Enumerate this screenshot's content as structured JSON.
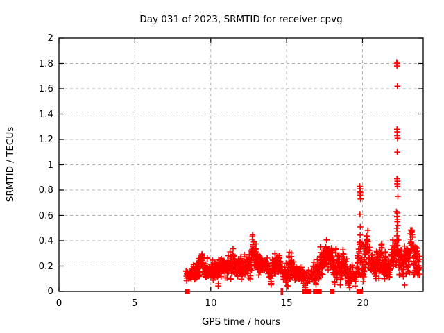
{
  "chart_data": {
    "type": "scatter",
    "title": "Day 031 of 2023, SRMTID for receiver cpvg",
    "xlabel": "GPS time / hours",
    "ylabel": "SRMTID / TECUs",
    "xlim": [
      0,
      24
    ],
    "ylim": [
      0,
      2
    ],
    "xticks": [
      0,
      5,
      10,
      15,
      20
    ],
    "xtick_labels": [
      "0",
      "5",
      "10",
      "15",
      "20"
    ],
    "yticks": [
      0,
      0.2,
      0.4,
      0.6,
      0.8,
      1,
      1.2,
      1.4,
      1.6,
      1.8,
      2
    ],
    "ytick_labels": [
      "0",
      "0.2",
      "0.4",
      "0.6",
      "0.8",
      "1",
      "1.2",
      "1.4",
      "1.6",
      "1.8",
      "2"
    ],
    "grid": true,
    "grid_color": "#b0b0b0",
    "border_color": "#000000",
    "marker": "+",
    "marker_color": "#ff0000",
    "legend": null,
    "band": {
      "comment": "dense noisy scatter band; envelope rows are [hour, mean_TECU, half_spread_TECU], linearly interpolated; sampled every cadence hours with seeded noise",
      "start": 8.38,
      "end": 23.78,
      "cadence": 0.01,
      "seed": 1031,
      "clamp": [
        0.03,
        0.485
      ],
      "sparse_ranges": [
        [
          14.55,
          14.85,
          0.6
        ],
        [
          16.13,
          16.62,
          0.35
        ],
        [
          19.3,
          19.62,
          0.55
        ]
      ],
      "envelope": [
        [
          8.38,
          0.13,
          0.035
        ],
        [
          8.7,
          0.14,
          0.045
        ],
        [
          9.0,
          0.17,
          0.06
        ],
        [
          9.35,
          0.22,
          0.09
        ],
        [
          9.6,
          0.18,
          0.06
        ],
        [
          9.9,
          0.16,
          0.05
        ],
        [
          10.15,
          0.18,
          0.06
        ],
        [
          10.4,
          0.21,
          0.08
        ],
        [
          10.65,
          0.21,
          0.08
        ],
        [
          10.9,
          0.18,
          0.06
        ],
        [
          11.15,
          0.21,
          0.09
        ],
        [
          11.35,
          0.23,
          0.1
        ],
        [
          11.6,
          0.21,
          0.09
        ],
        [
          11.8,
          0.2,
          0.08
        ],
        [
          12.0,
          0.24,
          0.11
        ],
        [
          12.25,
          0.2,
          0.08
        ],
        [
          12.5,
          0.23,
          0.1
        ],
        [
          12.75,
          0.25,
          0.1
        ],
        [
          12.95,
          0.26,
          0.11
        ],
        [
          13.2,
          0.21,
          0.08
        ],
        [
          13.5,
          0.17,
          0.06
        ],
        [
          13.8,
          0.16,
          0.06
        ],
        [
          14.1,
          0.18,
          0.07
        ],
        [
          14.4,
          0.21,
          0.09
        ],
        [
          14.65,
          0.17,
          0.06
        ],
        [
          14.9,
          0.18,
          0.08
        ],
        [
          15.1,
          0.22,
          0.11
        ],
        [
          15.35,
          0.16,
          0.07
        ],
        [
          15.6,
          0.14,
          0.05
        ],
        [
          15.85,
          0.12,
          0.05
        ],
        [
          16.1,
          0.1,
          0.05
        ],
        [
          16.4,
          0.11,
          0.06
        ],
        [
          16.7,
          0.15,
          0.07
        ],
        [
          16.95,
          0.18,
          0.08
        ],
        [
          17.2,
          0.21,
          0.09
        ],
        [
          17.45,
          0.23,
          0.1
        ],
        [
          17.65,
          0.26,
          0.11
        ],
        [
          17.95,
          0.26,
          0.12
        ],
        [
          18.2,
          0.21,
          0.1
        ],
        [
          18.45,
          0.25,
          0.12
        ],
        [
          18.7,
          0.19,
          0.1
        ],
        [
          18.95,
          0.16,
          0.09
        ],
        [
          19.2,
          0.12,
          0.07
        ],
        [
          19.45,
          0.1,
          0.05
        ],
        [
          19.65,
          0.16,
          0.1
        ],
        [
          19.85,
          0.27,
          0.17
        ],
        [
          20.05,
          0.29,
          0.14
        ],
        [
          20.3,
          0.28,
          0.13
        ],
        [
          20.55,
          0.24,
          0.1
        ],
        [
          20.8,
          0.2,
          0.08
        ],
        [
          21.05,
          0.23,
          0.1
        ],
        [
          21.25,
          0.25,
          0.11
        ],
        [
          21.5,
          0.18,
          0.09
        ],
        [
          21.75,
          0.16,
          0.08
        ],
        [
          22.0,
          0.25,
          0.11
        ],
        [
          22.2,
          0.29,
          0.13
        ],
        [
          22.4,
          0.26,
          0.11
        ],
        [
          22.6,
          0.2,
          0.09
        ],
        [
          22.85,
          0.23,
          0.1
        ],
        [
          23.1,
          0.27,
          0.11
        ],
        [
          23.3,
          0.31,
          0.12
        ],
        [
          23.5,
          0.31,
          0.12
        ],
        [
          23.65,
          0.28,
          0.1
        ],
        [
          23.78,
          0.29,
          0.09
        ]
      ]
    },
    "outliers": [
      [
        19.82,
        0.83
      ],
      [
        19.85,
        0.81
      ],
      [
        19.83,
        0.79
      ],
      [
        19.86,
        0.78
      ],
      [
        19.84,
        0.76
      ],
      [
        19.87,
        0.73
      ],
      [
        19.83,
        0.61
      ],
      [
        19.86,
        0.51
      ],
      [
        22.26,
        1.81
      ],
      [
        22.29,
        1.8
      ],
      [
        22.27,
        1.78
      ],
      [
        22.3,
        1.62
      ],
      [
        22.27,
        1.28
      ],
      [
        22.29,
        1.26
      ],
      [
        22.28,
        1.23
      ],
      [
        22.31,
        1.21
      ],
      [
        22.29,
        1.1
      ],
      [
        22.27,
        0.89
      ],
      [
        22.3,
        0.87
      ],
      [
        22.28,
        0.85
      ],
      [
        22.31,
        0.83
      ],
      [
        22.33,
        0.75
      ],
      [
        22.24,
        0.63
      ],
      [
        22.3,
        0.62
      ],
      [
        22.27,
        0.59
      ],
      [
        22.31,
        0.57
      ],
      [
        22.29,
        0.55
      ],
      [
        22.33,
        0.52
      ],
      [
        22.26,
        0.5
      ],
      [
        22.31,
        0.47
      ],
      [
        22.78,
        0.05
      ]
    ],
    "zero_markers": {
      "comment": "clusters of points at y=0 drawn on the x-axis",
      "squares": [
        8.47,
        16.2,
        16.32,
        16.47,
        16.9,
        17.15,
        18.0,
        19.76,
        19.86
      ],
      "bars": [
        14.65,
        14.73
      ]
    }
  }
}
